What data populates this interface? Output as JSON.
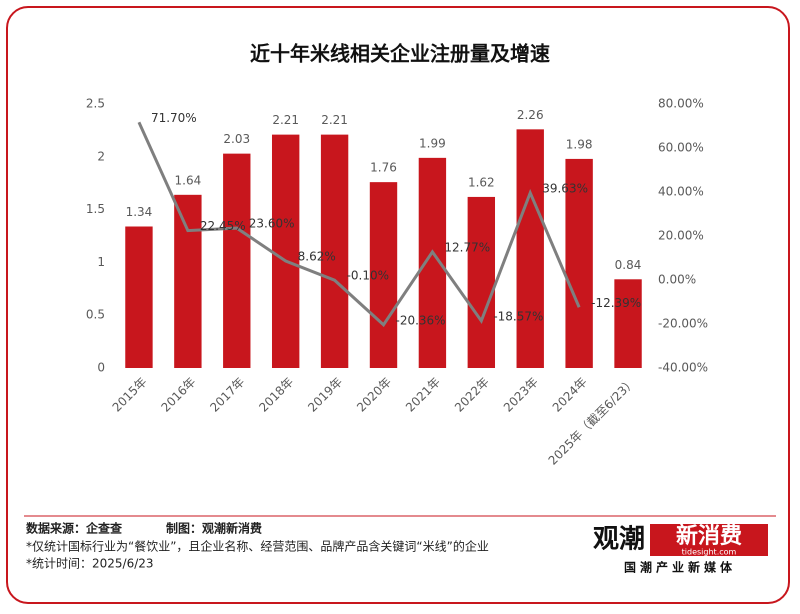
{
  "chart_data": {
    "type": "bar_line",
    "title": "近十年米线相关企业注册量及增速",
    "categories": [
      "2015年",
      "2016年",
      "2017年",
      "2018年",
      "2019年",
      "2020年",
      "2021年",
      "2022年",
      "2023年",
      "2024年",
      "2025年（截至6/23）"
    ],
    "series": [
      {
        "name": "注册量",
        "type": "bar",
        "color": "#c8161d",
        "values": [
          1.34,
          1.64,
          2.03,
          2.21,
          2.21,
          1.76,
          1.99,
          1.62,
          2.26,
          1.98,
          0.84
        ]
      },
      {
        "name": "增速",
        "type": "line",
        "axis": "y2",
        "color": "#7f7f7f",
        "values": [
          71.7,
          22.45,
          23.6,
          8.62,
          -0.1,
          -20.36,
          12.77,
          -18.57,
          39.63,
          -12.39,
          null
        ],
        "value_labels": [
          "71.70%",
          "22.45%",
          "23.60%",
          "8.62%",
          "-0.10%",
          "-20.36%",
          "12.77%",
          "-18.57%",
          "39.63%",
          "-12.39%",
          null
        ]
      }
    ],
    "ylim": [
      0,
      2.5
    ],
    "yticks": [
      0,
      0.5,
      1,
      1.5,
      2,
      2.5
    ],
    "y2lim": [
      -40,
      80
    ],
    "y2ticks": [
      {
        "value": -40,
        "label": "-40.00%"
      },
      {
        "value": -20,
        "label": "-20.00%"
      },
      {
        "value": 0,
        "label": "0.00%"
      },
      {
        "value": 20,
        "label": "20.00%"
      },
      {
        "value": 40,
        "label": "40.00%"
      },
      {
        "value": 60,
        "label": "60.00%"
      },
      {
        "value": 80,
        "label": "80.00%"
      }
    ],
    "grid": false
  },
  "footer": {
    "source": "数据来源：企查查",
    "maker": "制图：观潮新消费",
    "note1": "*仅统计国标行业为“餐饮业”，且企业名称、经营范围、品牌产品含关键词“米线”的企业",
    "note2": "*统计时间：2025/6/23",
    "logo_a": "观潮",
    "logo_b": "新消费",
    "logo_url": "tidesight.com",
    "logo_sub": "国潮产业新媒体"
  }
}
